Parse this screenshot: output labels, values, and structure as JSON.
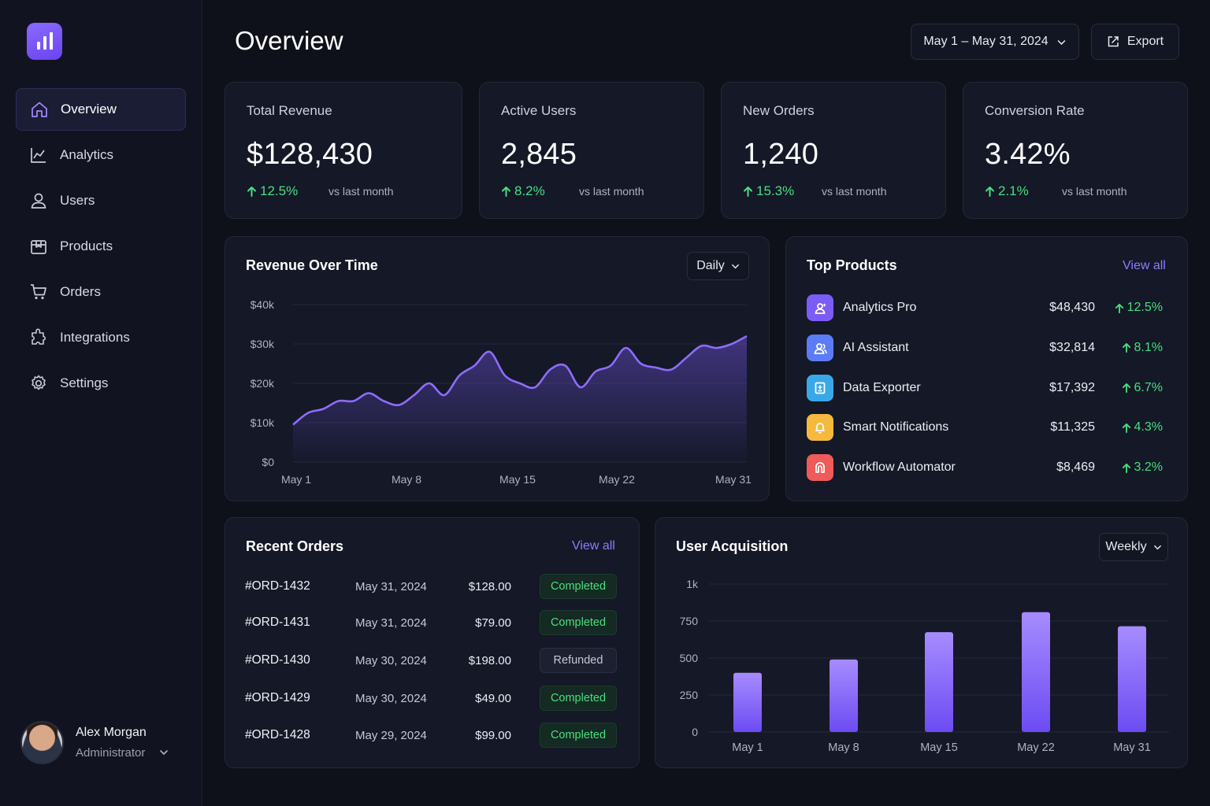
{
  "sidebar": {
    "logo_icon": "bar-chart-icon",
    "items": [
      {
        "label": "Overview",
        "icon": "home-icon"
      },
      {
        "label": "Analytics",
        "icon": "line-chart-icon"
      },
      {
        "label": "Users",
        "icon": "user-icon"
      },
      {
        "label": "Products",
        "icon": "package-icon"
      },
      {
        "label": "Orders",
        "icon": "cart-icon"
      },
      {
        "label": "Integrations",
        "icon": "puzzle-icon"
      },
      {
        "label": "Settings",
        "icon": "gear-icon"
      }
    ],
    "active_index": 0,
    "user": {
      "name": "Alex Morgan",
      "role": "Administrator"
    }
  },
  "header": {
    "title": "Overview",
    "date_range": "May 1 – May 31, 2024",
    "export_label": "Export"
  },
  "stats": [
    {
      "label": "Total Revenue",
      "value": "$128,430",
      "change": "12.5%",
      "note": "vs last month"
    },
    {
      "label": "Active Users",
      "value": "2,845",
      "change": "8.2%",
      "note": "vs last month"
    },
    {
      "label": "New Orders",
      "value": "1,240",
      "change": "15.3%",
      "note": "vs last month"
    },
    {
      "label": "Conversion Rate",
      "value": "3.42%",
      "change": "2.1%",
      "note": "vs last month"
    }
  ],
  "revenue": {
    "title": "Revenue Over Time",
    "period": "Daily"
  },
  "top_products": {
    "title": "Top Products",
    "view_all": "View all",
    "items": [
      {
        "name": "Analytics Pro",
        "revenue": "$48,430",
        "change": "12.5%",
        "color": "#7c5cf6",
        "icon": "sparkle-user-icon"
      },
      {
        "name": "AI Assistant",
        "revenue": "$32,814",
        "change": "8.1%",
        "color": "#5b7cf6",
        "icon": "users-icon"
      },
      {
        "name": "Data Exporter",
        "revenue": "$17,392",
        "change": "6.7%",
        "color": "#3aa8e8",
        "icon": "export-doc-icon"
      },
      {
        "name": "Smart Notifications",
        "revenue": "$11,325",
        "change": "4.3%",
        "color": "#f5b93e",
        "icon": "bell-icon"
      },
      {
        "name": "Workflow Automator",
        "revenue": "$8,469",
        "change": "3.2%",
        "color": "#ef5a5a",
        "icon": "workflow-icon"
      }
    ]
  },
  "recent_orders": {
    "title": "Recent Orders",
    "view_all": "View all",
    "rows": [
      {
        "id": "#ORD-1432",
        "date": "May 31, 2024",
        "amount": "$128.00",
        "status": "Completed"
      },
      {
        "id": "#ORD-1431",
        "date": "May 31, 2024",
        "amount": "$79.00",
        "status": "Completed"
      },
      {
        "id": "#ORD-1430",
        "date": "May 30, 2024",
        "amount": "$198.00",
        "status": "Refunded"
      },
      {
        "id": "#ORD-1429",
        "date": "May 30, 2024",
        "amount": "$49.00",
        "status": "Completed"
      },
      {
        "id": "#ORD-1428",
        "date": "May 29, 2024",
        "amount": "$99.00",
        "status": "Completed"
      }
    ]
  },
  "acquisition": {
    "title": "User Acquisition",
    "period": "Weekly"
  },
  "chart_data": [
    {
      "type": "area",
      "title": "Revenue Over Time",
      "x": [
        1,
        2,
        3,
        4,
        5,
        6,
        7,
        8,
        9,
        10,
        11,
        12,
        13,
        14,
        15,
        16,
        17,
        18,
        19,
        20,
        21,
        22,
        23,
        24,
        25,
        26,
        27,
        28,
        29,
        30,
        31
      ],
      "y": [
        9500,
        12500,
        13500,
        15500,
        15500,
        17500,
        15500,
        14500,
        17000,
        20000,
        17000,
        22000,
        24500,
        28000,
        22000,
        20000,
        19000,
        23500,
        24500,
        19000,
        23000,
        24500,
        29000,
        25000,
        24000,
        23500,
        26500,
        29500,
        29000,
        30000,
        32000
      ],
      "x_ticks": [
        "May 1",
        "May 8",
        "May 15",
        "May 22",
        "May 31"
      ],
      "y_ticks": [
        "$0",
        "$10k",
        "$20k",
        "$30k",
        "$40k"
      ],
      "ylim": [
        0,
        40000
      ],
      "color": "#7c5cf6",
      "grid": true
    },
    {
      "type": "bar",
      "title": "User Acquisition",
      "categories": [
        "May 1",
        "May 8",
        "May 15",
        "May 22",
        "May 31"
      ],
      "values": [
        400,
        490,
        675,
        810,
        715
      ],
      "y_ticks": [
        "0",
        "250",
        "500",
        "750",
        "1k"
      ],
      "ylim": [
        0,
        1000
      ],
      "color": "#7c5cf6",
      "grid": true
    }
  ]
}
